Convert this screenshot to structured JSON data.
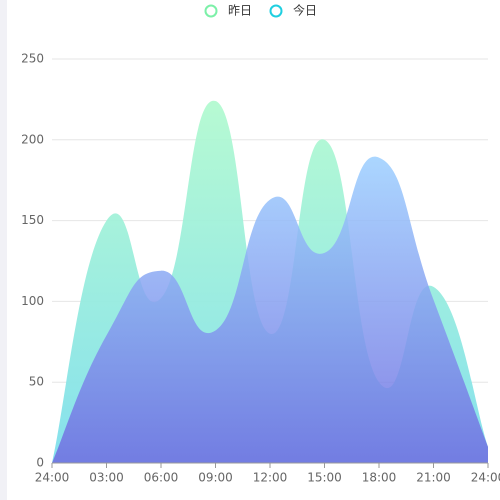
{
  "chart_data": {
    "type": "area",
    "categories": [
      "24:00",
      "03:00",
      "06:00",
      "09:00",
      "12:00",
      "15:00",
      "18:00",
      "21:00",
      "24:00"
    ],
    "series": [
      {
        "name": "昨日",
        "color": "#7cf0a8",
        "area_colors": [
          "#b3fad0",
          "#7fdfec"
        ],
        "values": [
          0,
          150,
          102,
          224,
          80,
          200,
          50,
          109,
          10
        ]
      },
      {
        "name": "今日",
        "color": "#1fcfe0",
        "area_colors": [
          "#9ccfff",
          "#6f6be0"
        ],
        "values": [
          0,
          79,
          119,
          82,
          163,
          130,
          189,
          101,
          10
        ]
      }
    ],
    "ylim": [
      0,
      250
    ],
    "yticks": [
      0,
      50,
      100,
      150,
      200,
      250
    ],
    "grid": true,
    "smooth": true
  }
}
